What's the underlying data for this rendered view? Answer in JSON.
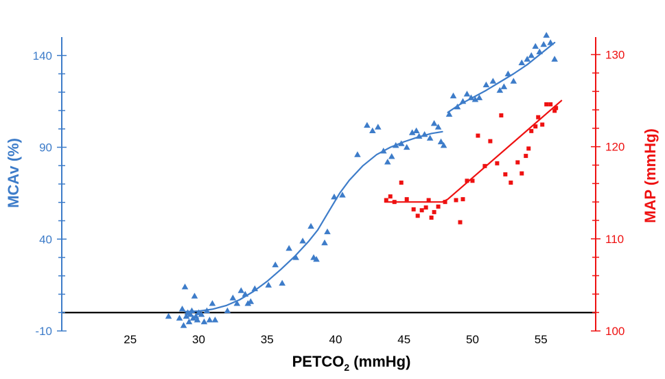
{
  "chart_data": {
    "type": "scatter",
    "title": "",
    "xlabel": {
      "main": "PETCO",
      "subscript": "2",
      "suffix": " (mmHg)"
    },
    "ylabel_left": "MCAv (%)",
    "ylabel_right": "MAP (mmHg)",
    "xlim": [
      20,
      59
    ],
    "ylim_left": [
      -10,
      150
    ],
    "ylim_right": [
      100,
      131.9
    ],
    "x_ticks": [
      25,
      30,
      35,
      40,
      45,
      50,
      55
    ],
    "y_left_ticks": [
      -10,
      40,
      90,
      140
    ],
    "y_right_ticks": [
      100,
      110,
      120,
      130
    ],
    "baseline_left_value": 0,
    "colors": {
      "mcav": "#3d7cc9",
      "map": "#ee1111",
      "axis_black": "#000000"
    },
    "series": [
      {
        "name": "MCAv",
        "axis": "left",
        "marker": "triangle",
        "color": "#3d7cc9",
        "points": [
          [
            27.8,
            -2
          ],
          [
            28.6,
            -3
          ],
          [
            28.8,
            2
          ],
          [
            28.9,
            -7
          ],
          [
            29,
            14
          ],
          [
            29.1,
            -2
          ],
          [
            29.2,
            0
          ],
          [
            29.3,
            -5
          ],
          [
            29.4,
            -1
          ],
          [
            29.5,
            1
          ],
          [
            29.6,
            -3
          ],
          [
            29.7,
            9
          ],
          [
            29.8,
            -2
          ],
          [
            29.9,
            -4
          ],
          [
            30,
            0
          ],
          [
            30.2,
            -1
          ],
          [
            30.4,
            -5
          ],
          [
            30.6,
            1
          ],
          [
            30.8,
            -4
          ],
          [
            31,
            5
          ],
          [
            31.2,
            -4
          ],
          [
            32.1,
            1
          ],
          [
            32.5,
            8
          ],
          [
            32.8,
            5
          ],
          [
            33.1,
            12
          ],
          [
            33.4,
            10
          ],
          [
            33.6,
            5
          ],
          [
            33.8,
            6
          ],
          [
            34.1,
            13
          ],
          [
            35.1,
            15
          ],
          [
            35.6,
            26
          ],
          [
            36.1,
            16
          ],
          [
            36.6,
            35
          ],
          [
            37.1,
            30
          ],
          [
            37.6,
            39
          ],
          [
            38.2,
            47
          ],
          [
            38.4,
            30
          ],
          [
            38.6,
            29
          ],
          [
            39.2,
            38
          ],
          [
            39.4,
            44
          ],
          [
            39.9,
            63
          ],
          [
            40.5,
            64
          ],
          [
            41.6,
            86
          ],
          [
            42.3,
            102
          ],
          [
            42.7,
            99
          ],
          [
            43.1,
            101
          ],
          [
            43.5,
            88
          ],
          [
            43.8,
            82
          ],
          [
            44.1,
            85
          ],
          [
            44.4,
            91
          ],
          [
            44.8,
            92
          ],
          [
            45.2,
            90
          ],
          [
            45.6,
            98
          ],
          [
            45.9,
            99
          ],
          [
            46.1,
            96
          ],
          [
            46.5,
            97
          ],
          [
            46.9,
            95
          ],
          [
            47.2,
            103
          ],
          [
            47.5,
            101
          ],
          [
            47.7,
            93
          ],
          [
            47.9,
            91
          ],
          [
            48.3,
            108
          ],
          [
            48.6,
            118
          ],
          [
            48.9,
            112
          ],
          [
            49.3,
            115
          ],
          [
            49.6,
            119
          ],
          [
            49.9,
            117
          ],
          [
            50.2,
            116
          ],
          [
            50.5,
            117
          ],
          [
            51,
            124
          ],
          [
            51.5,
            126
          ],
          [
            52,
            121
          ],
          [
            52.3,
            123
          ],
          [
            52.6,
            130
          ],
          [
            53,
            126
          ],
          [
            53.6,
            136
          ],
          [
            54,
            138
          ],
          [
            54.3,
            140
          ],
          [
            54.6,
            145
          ],
          [
            54.9,
            142
          ],
          [
            55.2,
            146
          ],
          [
            55.4,
            151
          ],
          [
            55.7,
            147
          ],
          [
            56,
            138
          ]
        ],
        "fit": [
          [
            29,
            0.5
          ],
          [
            30,
            0.8
          ],
          [
            31,
            1.8
          ],
          [
            32,
            3.8
          ],
          [
            33,
            7
          ],
          [
            34,
            11.5
          ],
          [
            35,
            17
          ],
          [
            36,
            23.5
          ],
          [
            37,
            30.5
          ],
          [
            38,
            38.5
          ],
          [
            38.7,
            45
          ],
          [
            39.5,
            55
          ],
          [
            40.3,
            65
          ],
          [
            41,
            72
          ],
          [
            42,
            80
          ],
          [
            43,
            86
          ],
          [
            44,
            90
          ],
          [
            45,
            93
          ],
          [
            46,
            95.5
          ],
          [
            47,
            97.5
          ],
          [
            47.8,
            98.5
          ]
        ],
        "fit2": [
          [
            48.2,
            109
          ],
          [
            49,
            113
          ],
          [
            50,
            117
          ],
          [
            51,
            121
          ],
          [
            52,
            125.5
          ],
          [
            53,
            130
          ],
          [
            54,
            135
          ],
          [
            55,
            141
          ],
          [
            56,
            147
          ]
        ]
      },
      {
        "name": "MAP",
        "axis": "right",
        "marker": "square",
        "color": "#ee1111",
        "points": [
          [
            43.7,
            114.2
          ],
          [
            44,
            114.6
          ],
          [
            44.3,
            114
          ],
          [
            44.8,
            116.1
          ],
          [
            45.2,
            114.3
          ],
          [
            45.7,
            113.2
          ],
          [
            46,
            112.5
          ],
          [
            46.3,
            113.1
          ],
          [
            46.6,
            113.4
          ],
          [
            46.8,
            114.2
          ],
          [
            47,
            112.3
          ],
          [
            47.2,
            112.9
          ],
          [
            47.5,
            113.5
          ],
          [
            48,
            114
          ],
          [
            48.8,
            114.2
          ],
          [
            49.1,
            111.8
          ],
          [
            49.3,
            114.3
          ],
          [
            49.6,
            116.3
          ],
          [
            50,
            116.3
          ],
          [
            50.4,
            121.2
          ],
          [
            50.9,
            117.9
          ],
          [
            51.3,
            120.6
          ],
          [
            51.8,
            118.2
          ],
          [
            52.1,
            123.4
          ],
          [
            52.4,
            117
          ],
          [
            52.8,
            116.1
          ],
          [
            53.3,
            118.3
          ],
          [
            53.6,
            117.1
          ],
          [
            53.9,
            119
          ],
          [
            54.1,
            119.8
          ],
          [
            54.3,
            121.7
          ],
          [
            54.6,
            122.2
          ],
          [
            54.8,
            123.2
          ],
          [
            55.1,
            122.4
          ],
          [
            55.4,
            124.6
          ],
          [
            55.7,
            124.6
          ],
          [
            56,
            123.9
          ],
          [
            56.1,
            124.2
          ]
        ],
        "fit": [
          [
            43.6,
            114
          ],
          [
            47.8,
            114
          ],
          [
            48.2,
            114.3
          ],
          [
            56.5,
            125
          ]
        ]
      }
    ]
  }
}
